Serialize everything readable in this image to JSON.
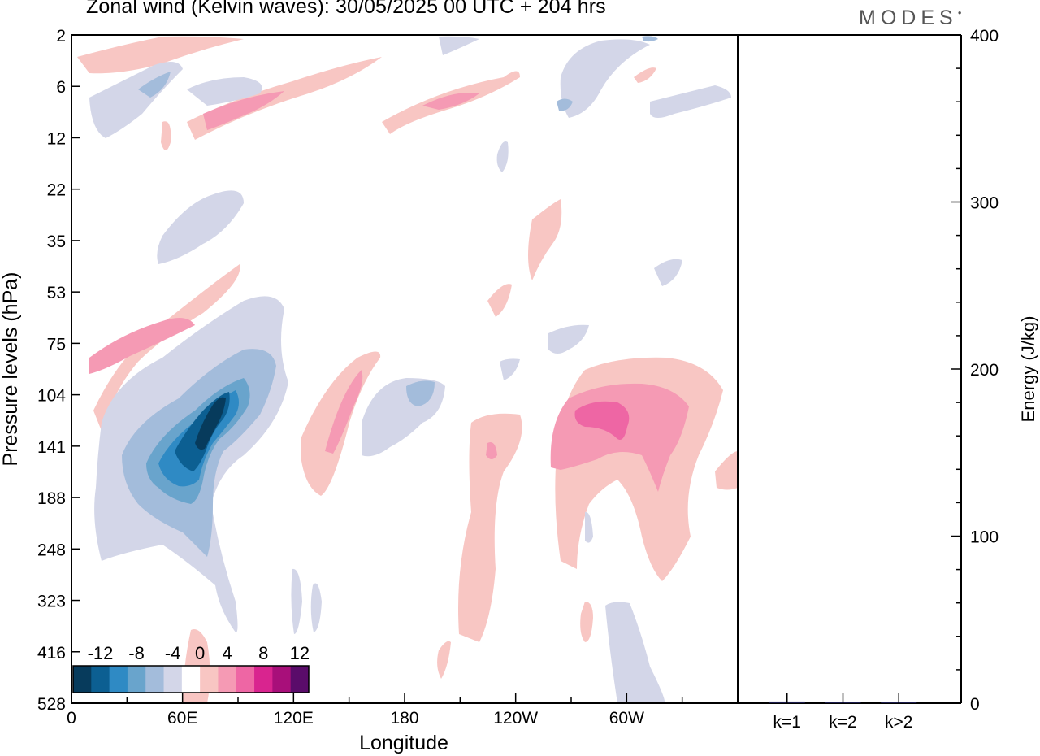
{
  "header": {
    "title": "Zonal wind (Kelvin waves):  30/05/2025  00 UTC  + 204 hrs",
    "logo_text": "MODES"
  },
  "chart_data": [
    {
      "type": "heatmap",
      "title": "Zonal wind (Kelvin waves):  30/05/2025  00 UTC  + 204 hrs",
      "xlabel": "Longitude",
      "ylabel": "Pressure levels (hPa)",
      "x_ticks": [
        "0",
        "60E",
        "120E",
        "180",
        "120W",
        "60W"
      ],
      "y_ticks": [
        "2",
        "6",
        "12",
        "22",
        "35",
        "53",
        "75",
        "104",
        "141",
        "188",
        "248",
        "323",
        "416",
        "528"
      ],
      "y_reversed": true,
      "colorbar": {
        "labels": [
          "-12",
          "-8",
          "-4",
          "0",
          "4",
          "8",
          "12"
        ],
        "levels": [
          -14,
          -12,
          -10,
          -8,
          -6,
          -4,
          -2,
          2,
          4,
          6,
          8,
          10,
          12,
          14
        ],
        "colors": [
          "#073b5c",
          "#0c5f92",
          "#2f8ac4",
          "#69a4cc",
          "#a3bcdb",
          "#d3d6e8",
          "#ffffff",
          "#f8c6c3",
          "#f59ab4",
          "#ee66a4",
          "#d9248f",
          "#a80f7a",
          "#5a0c6a"
        ]
      },
      "features": [
        {
          "name": "negative anomaly 60E-90E",
          "x_center": 65,
          "y_center": "141",
          "peak": -14
        },
        {
          "name": "positive anomaly 60W",
          "x_center": "60W",
          "y_center": "104",
          "peak": 8
        },
        {
          "name": "negative anomaly 180",
          "x_center": "180",
          "y_center": "104",
          "peak": -6
        }
      ]
    },
    {
      "type": "bar",
      "categories": [
        "k=1",
        "k=2",
        "k>2"
      ],
      "values": [
        1,
        0.5,
        0.8
      ],
      "ylabel": "Energy (J/kg)",
      "ylim": [
        0,
        400
      ],
      "y_ticks": [
        "0",
        "100",
        "200",
        "300",
        "400"
      ],
      "bar_color": "#1a1a4a"
    }
  ]
}
